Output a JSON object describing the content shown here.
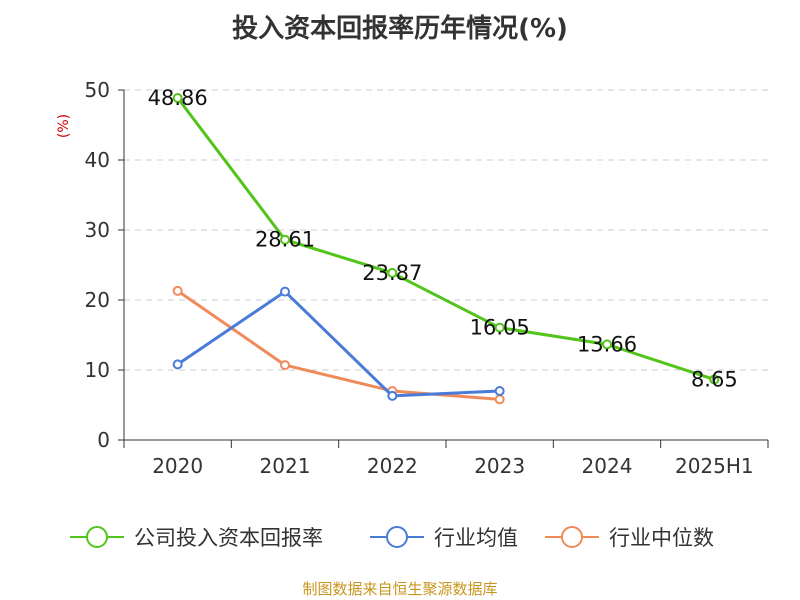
{
  "title": "投入资本回报率历年情况(%)",
  "source": "制图数据来自恒生聚源数据库",
  "chart_data": {
    "type": "line",
    "title": "投入资本回报率历年情况(%)",
    "ylabel": "(%)",
    "xlabel": "",
    "categories": [
      "2020",
      "2021",
      "2022",
      "2023",
      "2024",
      "2025H1"
    ],
    "ylim": [
      0,
      50
    ],
    "yticks": [
      0,
      10,
      20,
      30,
      40,
      50
    ],
    "grid": true,
    "legend_position": "bottom",
    "series": [
      {
        "name": "公司投入资本回报率",
        "color": "#52c41a",
        "values": [
          48.86,
          28.61,
          23.87,
          16.05,
          13.66,
          8.65
        ],
        "show_labels": true
      },
      {
        "name": "行业均值",
        "color": "#4a7bd9",
        "values": [
          10.8,
          21.2,
          6.3,
          7.0,
          null,
          null
        ],
        "show_labels": false
      },
      {
        "name": "行业中位数",
        "color": "#f08a5a",
        "values": [
          21.3,
          10.7,
          7.0,
          5.8,
          null,
          null
        ],
        "show_labels": false
      }
    ]
  }
}
